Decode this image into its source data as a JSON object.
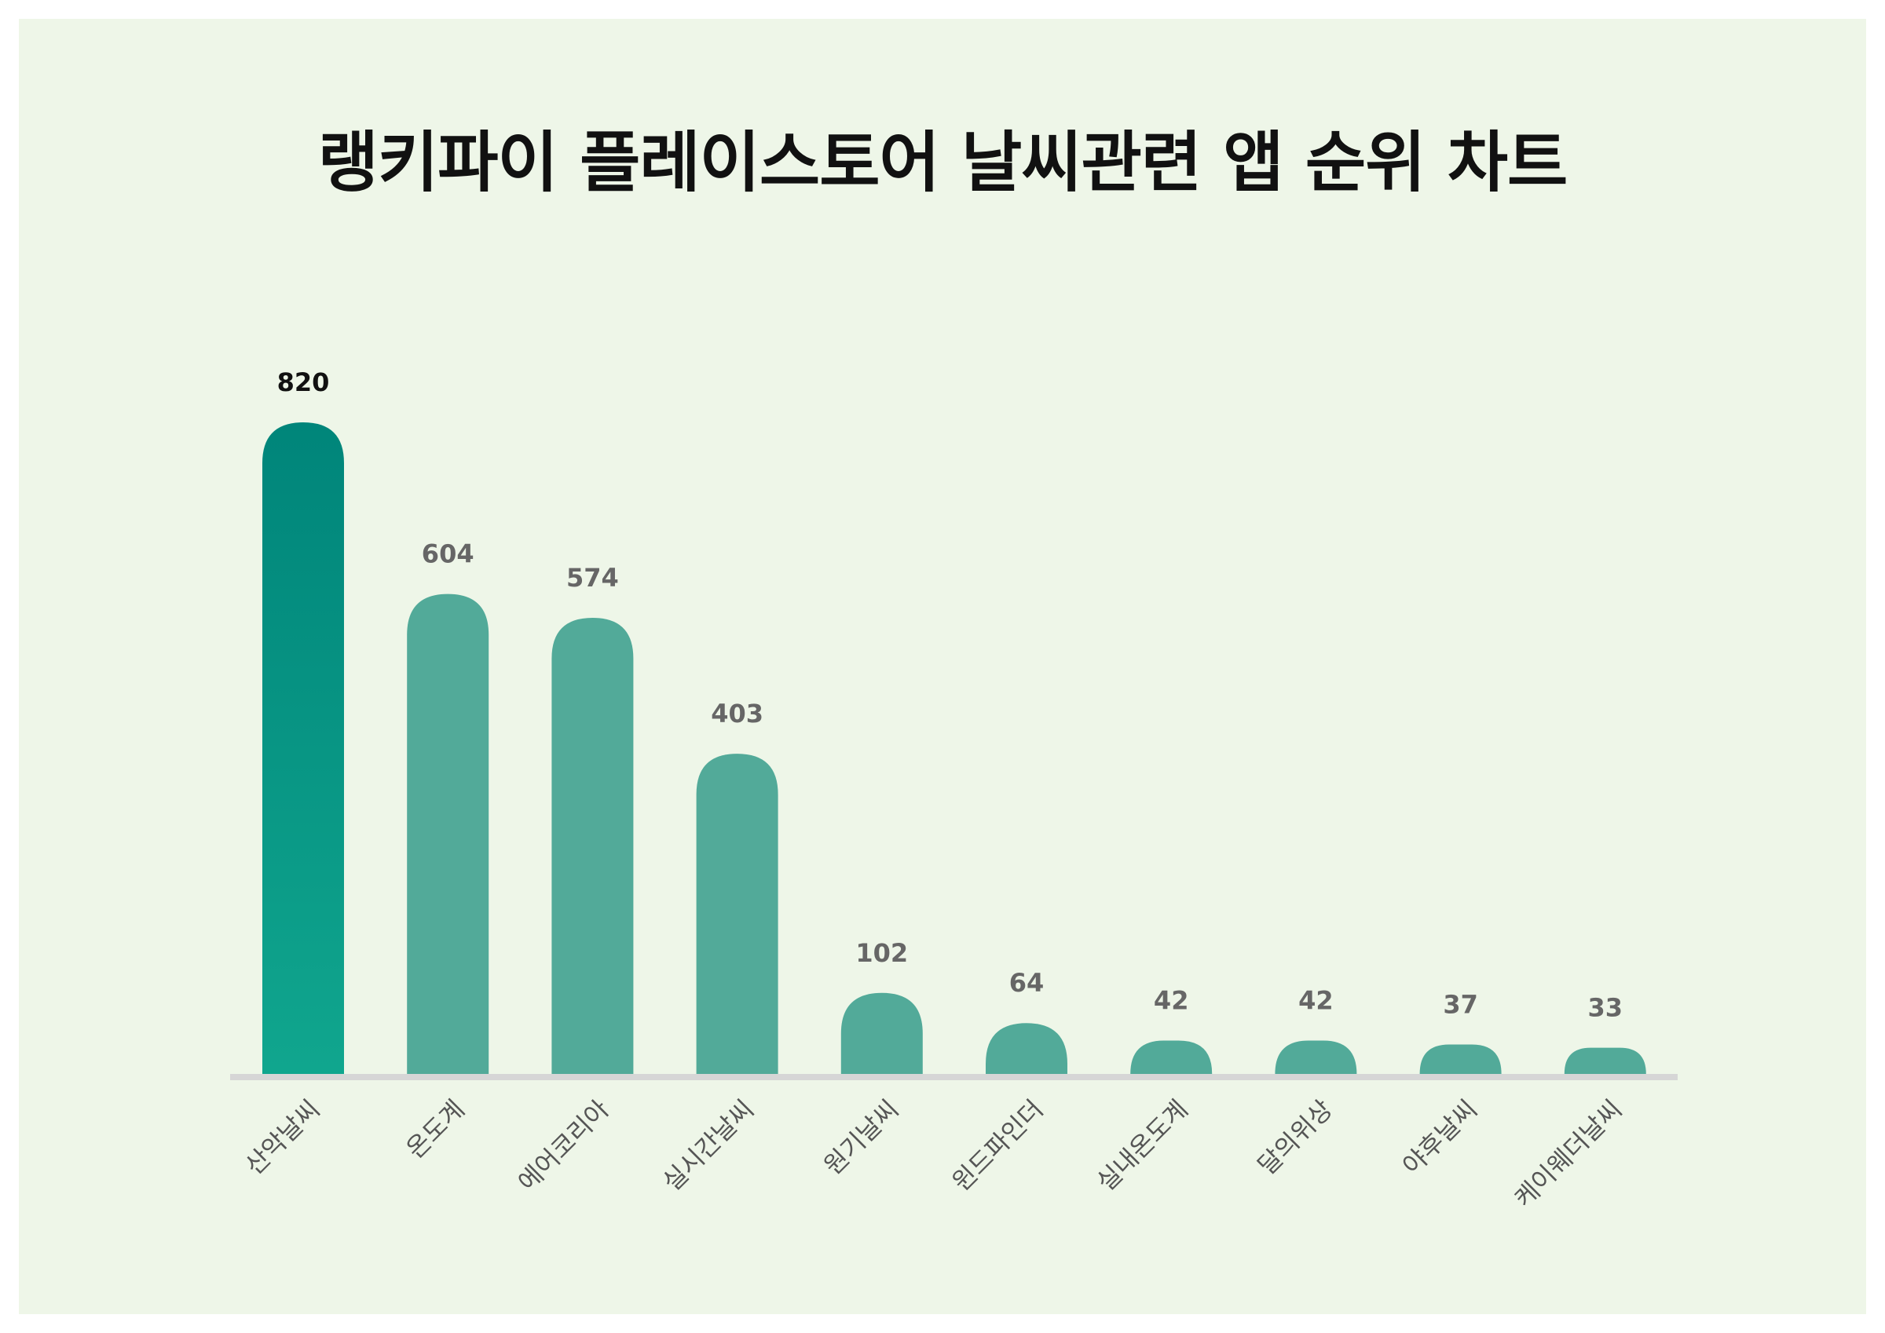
{
  "title": "랭키파이 플레이스토어 날씨관련 앱 순위 차트",
  "colors": {
    "background": "#eef6e8",
    "bar": "#52aa99",
    "top_bar_gradient_top": "#00857a",
    "top_bar_gradient_bottom": "#10a68e",
    "baseline": "#d6d6d6",
    "top_value_label": "#111111",
    "value_label": "#666666",
    "category_label": "#555555"
  },
  "chart_data": {
    "type": "bar",
    "categories": [
      "산악날씨",
      "온도계",
      "에어코리아",
      "실시간날씨",
      "원기날씨",
      "윈드파인더",
      "실내온도계",
      "달의위상",
      "야후날씨",
      "케이웨더날씨"
    ],
    "values": [
      820,
      604,
      574,
      403,
      102,
      64,
      42,
      42,
      37,
      33
    ],
    "title": "랭키파이 플레이스토어 날씨관련 앱 순위 차트",
    "xlabel": "",
    "ylabel": "",
    "ylim": [
      0,
      820
    ],
    "grid": false,
    "legend": "none",
    "highlight_index": 0
  }
}
